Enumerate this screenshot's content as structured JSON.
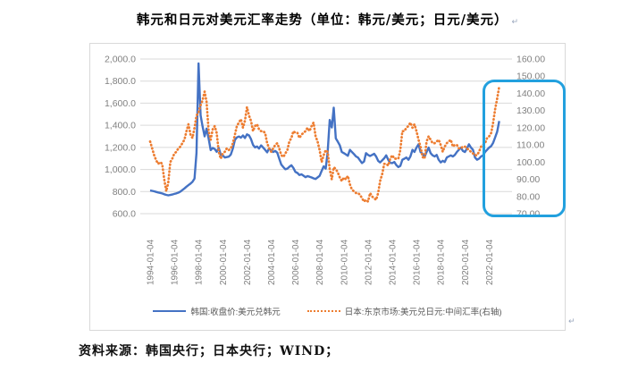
{
  "title": "韩元和日元对美元汇率走势（单位：韩元/美元；日元/美元）",
  "source": "资料来源：韩国央行；日本央行；WIND；",
  "paragraph_mark": "↵",
  "colors": {
    "series_krw": "#4472C4",
    "series_jpy": "#ED7D31",
    "gridline": "#D9D9D9",
    "axis_text": "#808080",
    "legend_text": "#595959",
    "highlight": "#22A0DE",
    "frame_border": "#D9D9D9"
  },
  "chart_data": {
    "type": "line",
    "title": "韩元和日元对美元汇率走势（单位：韩元/美元；日元/美元）",
    "grid": true,
    "legend_position": "bottom",
    "x_tick_labels": [
      "1994-01-04",
      "1996-01-04",
      "1998-01-04",
      "2000-01-04",
      "2002-01-04",
      "2004-01-04",
      "2006-01-04",
      "2008-01-04",
      "2010-01-04",
      "2012-01-04",
      "2014-01-04",
      "2016-01-04",
      "2018-01-04",
      "2020-01-04",
      "2022-01-04"
    ],
    "left_axis": {
      "min": 600,
      "max": 2000,
      "ticks": [
        "2,000.0",
        "1,800.0",
        "1,600.0",
        "1,400.0",
        "1,200.0",
        "1,000.0",
        "800.0",
        "600.0"
      ]
    },
    "right_axis": {
      "min": 70,
      "max": 160,
      "ticks": [
        "160.00",
        "150.00",
        "140.00",
        "130.00",
        "120.00",
        "110.00",
        "100.00",
        "90.00",
        "80.00",
        "70.00"
      ]
    },
    "series": [
      {
        "name": "韩国:收盘价:美元兑韩元",
        "axis": "left",
        "color": "#4472C4",
        "style": "solid",
        "x_start_year": 1994,
        "points_per_year": 6,
        "values": [
          810,
          806,
          802,
          797,
          792,
          788,
          783,
          776,
          770,
          766,
          769,
          773,
          779,
          784,
          790,
          800,
          814,
          828,
          844,
          858,
          872,
          888,
          918,
          1150,
          1960,
          1490,
          1390,
          1300,
          1370,
          1280,
          1175,
          1195,
          1185,
          1160,
          1195,
          1135,
          1128,
          1108,
          1112,
          1116,
          1135,
          1190,
          1268,
          1290,
          1298,
          1288,
          1308,
          1285,
          1318,
          1308,
          1275,
          1222,
          1200,
          1208,
          1190,
          1218,
          1198,
          1178,
          1155,
          1192,
          1168,
          1158,
          1168,
          1152,
          1098,
          1044,
          1022,
          1002,
          1008,
          1024,
          1038,
          1014,
          978,
          968,
          950,
          956,
          944,
          930,
          940,
          934,
          928,
          920,
          914,
          928,
          942,
          988,
          1028,
          1008,
          1158,
          1448,
          1380,
          1560,
          1282,
          1252,
          1218,
          1158,
          1148,
          1136,
          1124,
          1178,
          1158,
          1140,
          1118,
          1108,
          1082,
          1058,
          1072,
          1148,
          1132,
          1122,
          1132,
          1142,
          1118,
          1078,
          1064,
          1082,
          1102,
          1128,
          1088,
          1060,
          1058,
          1068,
          1040,
          1022,
          1032,
          1088,
          1098,
          1108,
          1088,
          1118,
          1178,
          1158,
          1198,
          1228,
          1158,
          1142,
          1112,
          1158,
          1198,
          1148,
          1128,
          1118,
          1132,
          1088,
          1064,
          1078,
          1068,
          1108,
          1118,
          1128,
          1118,
          1132,
          1158,
          1178,
          1198,
          1168,
          1158,
          1188,
          1228,
          1198,
          1178,
          1108,
          1088,
          1098,
          1118,
          1128,
          1158,
          1178,
          1198,
          1212,
          1242,
          1292,
          1342,
          1438
        ]
      },
      {
        "name": "日本:东京市场:美元兑日元:中间汇率(右轴)",
        "axis": "right",
        "color": "#ED7D31",
        "style": "dotted",
        "x_start_year": 1994,
        "points_per_year": 6,
        "values": [
          112,
          108,
          104,
          101,
          99,
          100,
          99,
          90,
          83,
          88,
          100,
          102,
          105,
          106,
          108,
          109,
          111,
          113,
          118,
          122,
          116,
          114,
          120,
          127,
          129,
          133,
          136,
          141,
          135,
          118,
          113,
          119,
          121,
          117,
          106,
          102,
          105,
          106,
          108,
          107,
          108,
          111,
          116,
          121,
          123,
          125,
          120,
          124,
          132,
          127,
          124,
          118,
          121,
          122,
          119,
          118,
          118,
          117,
          111,
          108,
          106,
          108,
          110,
          111,
          108,
          104,
          103,
          105,
          107,
          112,
          114,
          118,
          117,
          117,
          114,
          116,
          117,
          118,
          120,
          118,
          121,
          123,
          115,
          112,
          107,
          100,
          104,
          107,
          106,
          96,
          90,
          97,
          96,
          94,
          91,
          89,
          91,
          90,
          92,
          87,
          84,
          83,
          82,
          82,
          81,
          79,
          77,
          78,
          77,
          82,
          80,
          79,
          78,
          82,
          89,
          93,
          99,
          99,
          98,
          102,
          104,
          102,
          102,
          102,
          107,
          118,
          118,
          120,
          121,
          123,
          120,
          122,
          118,
          113,
          109,
          103,
          102,
          112,
          115,
          113,
          111,
          111,
          112,
          113,
          110,
          106,
          109,
          111,
          112,
          113,
          109,
          110,
          110,
          108,
          108,
          109,
          109,
          108,
          107,
          106,
          105,
          104,
          104,
          106,
          109,
          110,
          111,
          114,
          115,
          117,
          123,
          131,
          137,
          144
        ]
      }
    ],
    "annotations": [
      {
        "type": "highlight-box",
        "color": "#22A0DE",
        "x_year_start": 2021.45,
        "extends_to_frame_right": true,
        "right_axis_range": [
          68,
          148
        ]
      }
    ]
  }
}
